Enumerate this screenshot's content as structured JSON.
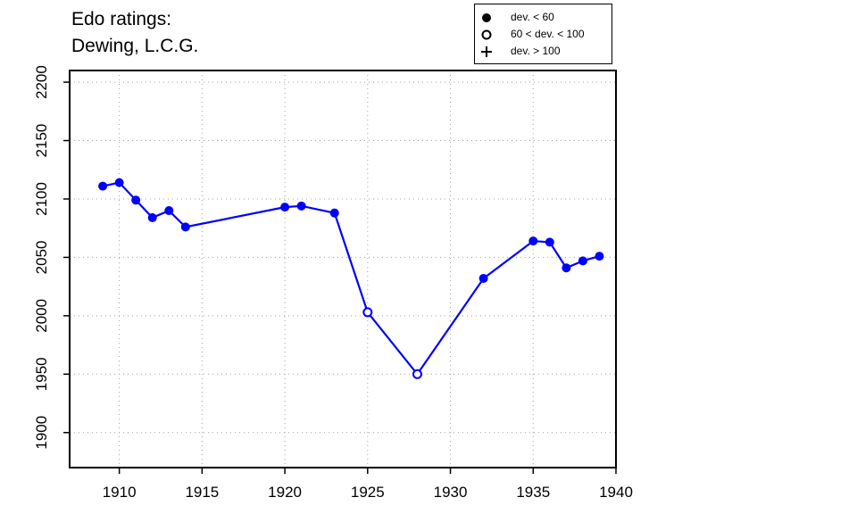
{
  "title": {
    "line1": "Edo ratings:",
    "line2": "Dewing, L.C.G."
  },
  "legend": {
    "items": [
      {
        "label": "dev. < 60",
        "symbol": "filled-circle"
      },
      {
        "label": "60 < dev. < 100",
        "symbol": "open-circle"
      },
      {
        "label": "dev. > 100",
        "symbol": "plus"
      }
    ]
  },
  "colors": {
    "series": "#0000ff",
    "axis": "#000000",
    "grid": "#a0a0a0"
  },
  "chart_data": {
    "type": "line",
    "title": "Edo ratings: Dewing, L.C.G.",
    "xlabel": "",
    "ylabel": "",
    "xlim": [
      1907,
      1940
    ],
    "ylim": [
      1870,
      2210
    ],
    "x_ticks": [
      1910,
      1915,
      1920,
      1925,
      1930,
      1935,
      1940
    ],
    "y_ticks": [
      1900,
      1950,
      2000,
      2050,
      2100,
      2150,
      2200
    ],
    "grid": true,
    "legend_position": "top-right",
    "series": [
      {
        "points": [
          {
            "x": 1909,
            "y": 2111,
            "marker": "filled"
          },
          {
            "x": 1910,
            "y": 2114,
            "marker": "filled"
          },
          {
            "x": 1911,
            "y": 2099,
            "marker": "filled"
          },
          {
            "x": 1912,
            "y": 2084,
            "marker": "filled"
          },
          {
            "x": 1913,
            "y": 2090,
            "marker": "filled"
          },
          {
            "x": 1914,
            "y": 2076,
            "marker": "filled"
          },
          {
            "x": 1920,
            "y": 2093,
            "marker": "filled"
          },
          {
            "x": 1921,
            "y": 2094,
            "marker": "filled"
          },
          {
            "x": 1923,
            "y": 2088,
            "marker": "filled"
          },
          {
            "x": 1925,
            "y": 2003,
            "marker": "open"
          },
          {
            "x": 1928,
            "y": 1950,
            "marker": "open"
          },
          {
            "x": 1932,
            "y": 2032,
            "marker": "filled"
          },
          {
            "x": 1935,
            "y": 2064,
            "marker": "filled"
          },
          {
            "x": 1936,
            "y": 2063,
            "marker": "filled"
          },
          {
            "x": 1937,
            "y": 2041,
            "marker": "filled"
          },
          {
            "x": 1938,
            "y": 2047,
            "marker": "filled"
          },
          {
            "x": 1939,
            "y": 2051,
            "marker": "filled"
          }
        ]
      }
    ]
  }
}
